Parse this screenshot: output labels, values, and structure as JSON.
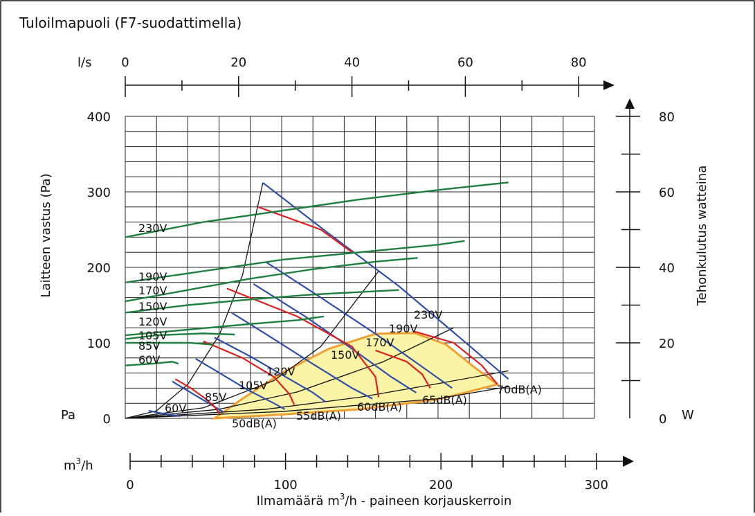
{
  "title": "Tuloilmapuoli (F7-suodattimella)",
  "chart_data": {
    "type": "line",
    "title": "Tuloilmapuoli (F7-suodattimella)",
    "top_axis": {
      "unit": "l/s",
      "ticks": [
        "0",
        "20",
        "40",
        "60",
        "80"
      ],
      "range": [
        0,
        83
      ]
    },
    "left_axis": {
      "label": "Laitteen vastus (Pa)",
      "unit": "Pa",
      "ticks": [
        "0",
        "100",
        "200",
        "300",
        "400"
      ],
      "range": [
        0,
        400
      ]
    },
    "right_axis": {
      "label": "Tehonkulutus watteina",
      "unit": "W",
      "ticks": [
        "0",
        "20",
        "40",
        "60",
        "80"
      ],
      "range": [
        0,
        80
      ]
    },
    "bottom_axis": {
      "unit": "m3/h",
      "unit_base": "m",
      "unit_sup": "3",
      "unit_tail": "/h",
      "ticks": [
        "0",
        "100",
        "200",
        "300"
      ],
      "range": [
        0,
        300
      ]
    },
    "x_caption": {
      "pre": "Ilmamäärä m",
      "sup": "3",
      "post": "/h - paineen korjauskerroin"
    },
    "plot_x_range": [
      0,
      300
    ],
    "grid": true,
    "colors": {
      "pressure_curves": "#2f4fa8",
      "power_curves": "#1f8040",
      "sound_curves": "#dd2020",
      "envelope": "#111111",
      "operating_area_fill": "#fbf3a6",
      "operating_area_edge": "#f0a030"
    },
    "pressure_curves": [
      {
        "label": "60V",
        "points": [
          [
            15,
            10
          ],
          [
            25,
            6
          ],
          [
            35,
            3
          ]
        ]
      },
      {
        "label": "85V",
        "points": [
          [
            30,
            49
          ],
          [
            42,
            34
          ],
          [
            55,
            18
          ],
          [
            63,
            8
          ]
        ]
      },
      {
        "label": "105V",
        "points": [
          [
            45,
            79
          ],
          [
            62,
            58
          ],
          [
            78,
            38
          ],
          [
            95,
            20
          ],
          [
            102,
            12
          ]
        ]
      },
      {
        "label": "120V",
        "points": [
          [
            57,
            107
          ],
          [
            80,
            82
          ],
          [
            100,
            58
          ],
          [
            120,
            34
          ],
          [
            128,
            22
          ]
        ]
      },
      {
        "label": "150V",
        "points": [
          [
            68,
            140
          ],
          [
            95,
            105
          ],
          [
            120,
            72
          ],
          [
            145,
            40
          ],
          [
            158,
            26
          ]
        ]
      },
      {
        "label": "170V",
        "points": [
          [
            82,
            178
          ],
          [
            115,
            135
          ],
          [
            143,
            95
          ],
          [
            170,
            55
          ],
          [
            186,
            34
          ]
        ]
      },
      {
        "label": "190V",
        "points": [
          [
            90,
            207
          ],
          [
            125,
            160
          ],
          [
            160,
            112
          ],
          [
            190,
            68
          ],
          [
            209,
            40
          ]
        ]
      },
      {
        "label": "230V",
        "points": [
          [
            88,
            312
          ],
          [
            130,
            245
          ],
          [
            175,
            175
          ],
          [
            215,
            105
          ],
          [
            245,
            52
          ]
        ]
      }
    ],
    "sound_curves": [
      {
        "label": "50dB(A)",
        "points": [
          [
            32,
            52
          ],
          [
            42,
            40
          ],
          [
            52,
            25
          ],
          [
            58,
            13
          ],
          [
            60,
            7
          ]
        ]
      },
      {
        "label": "55dB(A)",
        "points": [
          [
            50,
            102
          ],
          [
            75,
            80
          ],
          [
            95,
            55
          ],
          [
            105,
            32
          ],
          [
            108,
            18
          ]
        ]
      },
      {
        "label": "60dB(A)",
        "points": [
          [
            65,
            172
          ],
          [
            110,
            135
          ],
          [
            145,
            95
          ],
          [
            160,
            55
          ],
          [
            162,
            28
          ]
        ]
      },
      {
        "label": "65dB(A)",
        "points": [
          [
            85,
            280
          ],
          [
            125,
            250
          ],
          [
            145,
            220
          ]
        ]
      },
      {
        "label": "65dB(A) lower",
        "points": [
          [
            160,
            90
          ],
          [
            180,
            75
          ],
          [
            190,
            58
          ],
          [
            195,
            40
          ]
        ]
      },
      {
        "label": "70dB(A)",
        "points": [
          [
            185,
            115
          ],
          [
            210,
            100
          ],
          [
            228,
            70
          ],
          [
            238,
            45
          ]
        ]
      }
    ],
    "power_curves": [
      {
        "label": "230V",
        "points": [
          [
            0,
            48
          ],
          [
            50,
            52
          ],
          [
            100,
            55
          ],
          [
            150,
            58
          ],
          [
            200,
            60.5
          ],
          [
            245,
            62.5
          ]
        ]
      },
      {
        "label": "190V",
        "points": [
          [
            0,
            36
          ],
          [
            50,
            39
          ],
          [
            100,
            42
          ],
          [
            150,
            44
          ],
          [
            200,
            46
          ],
          [
            217,
            47
          ]
        ]
      },
      {
        "label": "170V",
        "points": [
          [
            0,
            31
          ],
          [
            40,
            34
          ],
          [
            80,
            37
          ],
          [
            120,
            39.5
          ],
          [
            160,
            41.5
          ],
          [
            187,
            42.5
          ]
        ]
      },
      {
        "label": "150V",
        "points": [
          [
            0,
            28
          ],
          [
            40,
            30
          ],
          [
            80,
            31.5
          ],
          [
            120,
            32.8
          ],
          [
            175,
            34
          ]
        ]
      },
      {
        "label": "120V",
        "points": [
          [
            0,
            22
          ],
          [
            40,
            23.5
          ],
          [
            80,
            25
          ],
          [
            110,
            26
          ],
          [
            127,
            27
          ]
        ]
      },
      {
        "label": "105V",
        "points": [
          [
            0,
            21
          ],
          [
            20,
            22
          ],
          [
            50,
            22.5
          ],
          [
            70,
            22.2
          ]
        ]
      },
      {
        "label": "85V",
        "points": [
          [
            0,
            20
          ],
          [
            20,
            20
          ],
          [
            42,
            20
          ],
          [
            56,
            19.5
          ]
        ]
      },
      {
        "label": "60V",
        "points": [
          [
            0,
            14
          ],
          [
            18,
            14.5
          ],
          [
            30,
            15
          ],
          [
            34,
            14.5
          ]
        ]
      }
    ],
    "envelope_lines": [
      {
        "name": "max-pressure-limit",
        "points": [
          [
            0,
            0
          ],
          [
            20,
            10
          ],
          [
            40,
            45
          ],
          [
            60,
            110
          ],
          [
            75,
            190
          ],
          [
            88,
            312
          ]
        ]
      },
      {
        "name": "diagonal-1",
        "points": [
          [
            0,
            0
          ],
          [
            50,
            14
          ],
          [
            95,
            50
          ],
          [
            125,
            95
          ],
          [
            162,
            195
          ]
        ]
      },
      {
        "name": "diagonal-2",
        "points": [
          [
            0,
            0
          ],
          [
            60,
            12
          ],
          [
            110,
            35
          ],
          [
            165,
            75
          ],
          [
            210,
            120
          ]
        ]
      },
      {
        "name": "diagonal-3",
        "points": [
          [
            0,
            0
          ],
          [
            90,
            12
          ],
          [
            150,
            28
          ],
          [
            200,
            46
          ],
          [
            245,
            63
          ]
        ]
      },
      {
        "name": "base-line",
        "points": [
          [
            0,
            0
          ],
          [
            100,
            9
          ],
          [
            200,
            26
          ],
          [
            245,
            42
          ]
        ]
      }
    ],
    "operating_area": {
      "points": [
        [
          57,
          0
        ],
        [
          75,
          26
        ],
        [
          100,
          60
        ],
        [
          130,
          92
        ],
        [
          160,
          112
        ],
        [
          185,
          113
        ],
        [
          205,
          98
        ],
        [
          223,
          68
        ],
        [
          238,
          45
        ],
        [
          200,
          25
        ],
        [
          150,
          12
        ],
        [
          100,
          5
        ],
        [
          57,
          0
        ]
      ]
    },
    "curve_labels": {
      "pressure_power": [
        "230V",
        "190V",
        "170V",
        "150V",
        "120V",
        "105V",
        "85V",
        "60V"
      ],
      "pressure": [
        "230V",
        "190V",
        "170V",
        "150V",
        "120V",
        "105V",
        "85V",
        "60V"
      ],
      "sound": [
        "50dB(A)",
        "55dB(A)",
        "60dB(A)",
        "65dB(A)",
        "70dB(A)"
      ]
    }
  }
}
